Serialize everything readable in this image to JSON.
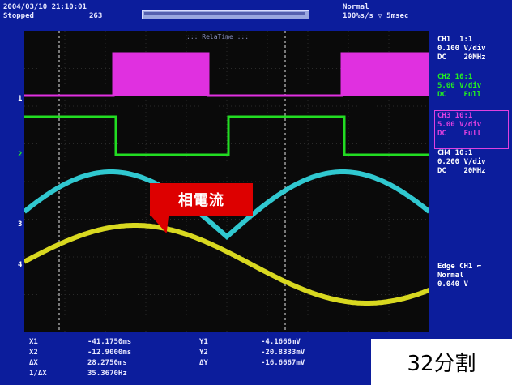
{
  "header": {
    "datetime": "2004/03/10 21:10:01",
    "status": "Stopped",
    "count": "263",
    "mode": "Normal",
    "timebase": "100%s/s ▽ 5msec"
  },
  "plot": {
    "meas_tag": "::: RelaTime :::"
  },
  "channel_markers": {
    "ch1": "1",
    "ch2": "2",
    "ch3": "3",
    "ch4": "4"
  },
  "channels": {
    "ch1": {
      "line1": "CH1  1:1",
      "line2": "0.100 V/div",
      "line3": "DC    20MHz",
      "color": "#ffffff"
    },
    "ch2": {
      "line1": "CH2 10:1",
      "line2": "5.00 V/div",
      "line3": "DC    Full",
      "color": "#22ee22"
    },
    "ch3": {
      "line1": "CH3 10:1",
      "line2": "5.00 V/div",
      "line3": "DC    Full",
      "color": "#e040e0"
    },
    "ch4": {
      "line1": "CH4 10:1",
      "line2": "0.200 V/div",
      "line3": "DC    20MHz",
      "color": "#ffffff"
    }
  },
  "trigger": {
    "line1": "Edge CH1 ⌐",
    "line2": "Normal",
    "line3": "0.040 V"
  },
  "cursors": {
    "x1_label": "X1",
    "x1_value": "-41.1750ms",
    "x2_label": "X2",
    "x2_value": "-12.9000ms",
    "dx_label": "ΔX",
    "dx_value": "28.2750ms",
    "inv_label": "1/ΔX",
    "inv_value": "35.3670Hz",
    "y1_label": "Y1",
    "y1_value": "-4.1666mV",
    "y2_label": "Y2",
    "y2_value": "-20.8333mV",
    "dy_label": "ΔY",
    "dy_value": "-16.6667mV"
  },
  "callout": "相電流",
  "badge": "32分割",
  "colors": {
    "ch1_trace": "#d8d820",
    "ch2_trace": "#22dd22",
    "ch3_trace": "#e030e0",
    "ch4_trace": "#30c8d0"
  }
}
